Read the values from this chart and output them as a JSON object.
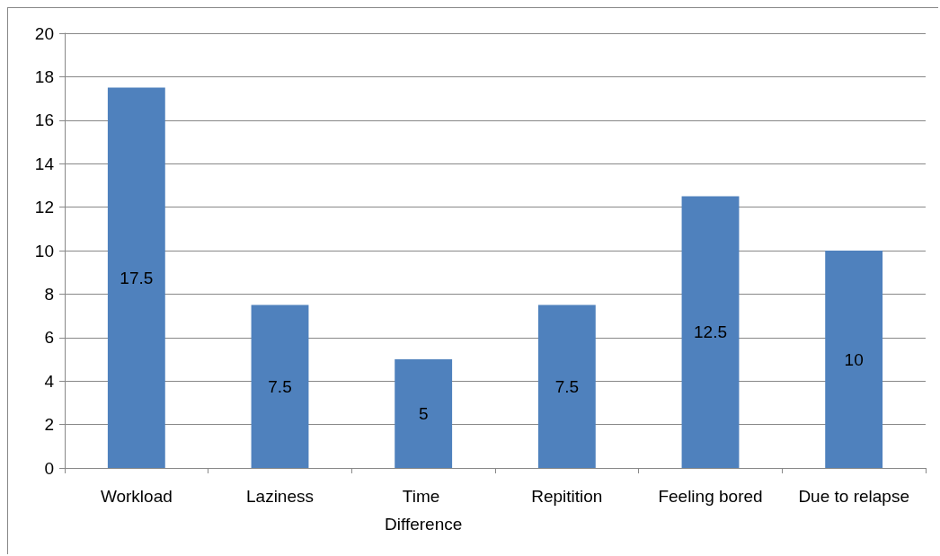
{
  "chart_data": {
    "type": "bar",
    "categories": [
      "Workload",
      "Laziness",
      "Time Difference",
      "Repitition",
      "Feeling bored",
      "Due to relapse"
    ],
    "values": [
      17.5,
      7.5,
      5,
      7.5,
      12.5,
      10
    ],
    "color": "#4f81bd",
    "ylim": [
      0,
      20
    ],
    "yticks": [
      0,
      2,
      4,
      6,
      8,
      10,
      12,
      14,
      16,
      18,
      20
    ],
    "grid": "y",
    "data_labels": true
  }
}
